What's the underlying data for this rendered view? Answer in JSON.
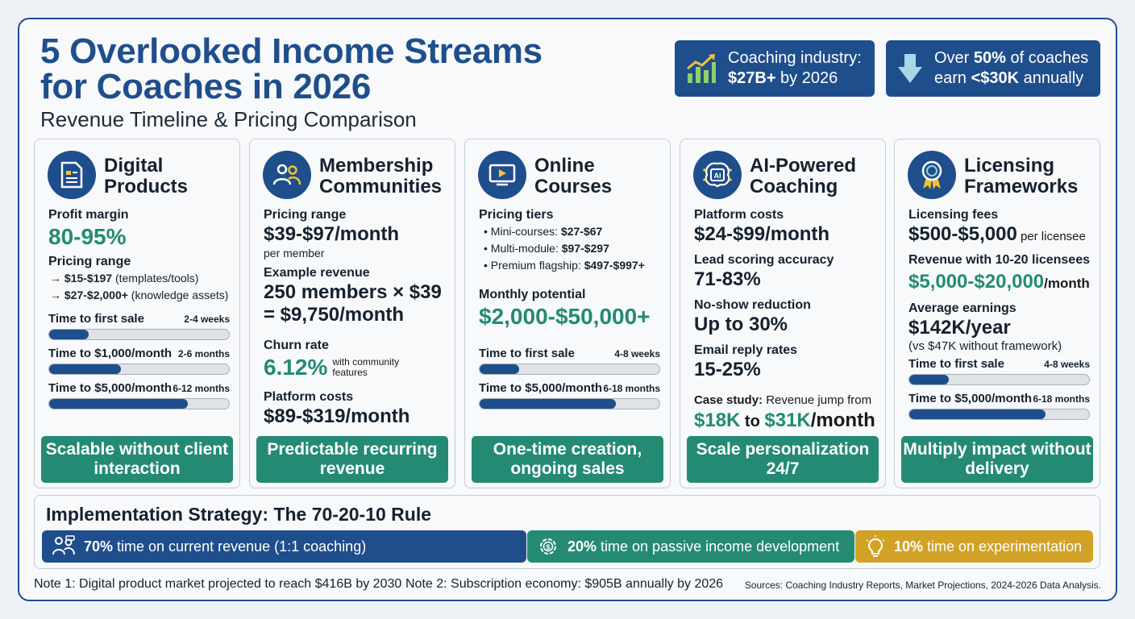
{
  "header": {
    "title_line1": "5 Overlooked Income Streams",
    "title_line2": "for Coaches in 2026",
    "subtitle": "Revenue Timeline & Pricing Comparison"
  },
  "stats": [
    {
      "icon": "bar-chart-up-icon",
      "line1": "Coaching industry:",
      "line2_bold": "$27B+",
      "line2_rest": " by 2026"
    },
    {
      "icon": "arrow-down-icon",
      "line1_pre": "Over ",
      "line1_bold": "50%",
      "line1_post": " of coaches",
      "line2_pre": "earn ",
      "line2_bold": "<$30K",
      "line2_post": " annually"
    }
  ],
  "cards": {
    "digital": {
      "title1": "Digital",
      "title2": "Products",
      "margin_label": "Profit margin",
      "margin_value": "80-95%",
      "pricing_label": "Pricing range",
      "items": [
        {
          "arrow": "→",
          "bold": "$15-$197",
          "rest": " (templates/tools)"
        },
        {
          "arrow": "→",
          "bold": "$27-$2,000+",
          "rest": " (knowledge assets)"
        }
      ],
      "bars": [
        {
          "label": "Time to first sale",
          "range": "2-4 weeks",
          "progress": 0.22
        },
        {
          "label": "Time to $1,000/month",
          "range": "2-6 months",
          "progress": 0.4
        },
        {
          "label": "Time to $5,000/month",
          "range": "6-12 months",
          "progress": 0.77
        }
      ],
      "cta": "Scalable without client interaction"
    },
    "membership": {
      "title1": "Membership",
      "title2": "Communities",
      "pricing_label": "Pricing range",
      "pricing_value": "$39-$97/month",
      "pricing_note": "per member",
      "example_label": "Example revenue",
      "example_line1": "250 members × $39",
      "example_line2": "= $9,750/month",
      "churn_label": "Churn rate",
      "churn_value": "6.12%",
      "churn_note": "with community features",
      "platform_label": "Platform costs",
      "platform_value": "$89-$319/month",
      "cta": "Predictable recurring revenue"
    },
    "courses": {
      "title1": "Online",
      "title2": "Courses",
      "tiers_label": "Pricing tiers",
      "tiers": [
        {
          "name": "Mini-courses: ",
          "price": "$27-$67"
        },
        {
          "name": "Multi-module: ",
          "price": "$97-$297"
        },
        {
          "name": "Premium flagship: ",
          "price": "$497-$997+"
        }
      ],
      "potential_label": "Monthly potential",
      "potential_value": "$2,000-$50,000+",
      "bars": [
        {
          "label": "Time to first sale",
          "range": "4-8 weeks",
          "progress": 0.22
        },
        {
          "label": "Time to $5,000/month",
          "range": "6-18 months",
          "progress": 0.76
        }
      ],
      "cta": "One-time creation, ongoing sales"
    },
    "ai": {
      "title1": "AI-Powered",
      "title2": "Coaching",
      "icon_text": "AI",
      "platform_label": "Platform costs",
      "platform_value": "$24-$99/month",
      "lead_label": "Lead scoring accuracy",
      "lead_value": "71-83%",
      "noshow_label": "No-show reduction",
      "noshow_value": "Up to 30%",
      "email_label": "Email reply rates",
      "email_value": "15-25%",
      "case_label": "Case study:",
      "case_text": " Revenue jump from",
      "case_from": "$18K",
      "case_to_word": " to ",
      "case_to": "$31K",
      "case_unit": "/month",
      "cta": "Scale personalization 24/7"
    },
    "licensing": {
      "title1": "Licensing",
      "title2": "Frameworks",
      "fees_label": "Licensing fees",
      "fees_value": "$500-$5,000",
      "fees_note": " per licensee",
      "rev_label": "Revenue with 10-20 licensees",
      "rev_value": "$5,000-$20,000",
      "rev_unit": "/month",
      "avg_label": "Average earnings",
      "avg_value": "$142K/year",
      "avg_note": "(vs $47K without framework)",
      "bars": [
        {
          "label": "Time to first sale",
          "range": "4-8 weeks",
          "progress": 0.22
        },
        {
          "label": "Time to $5,000/month",
          "range": "6-18 months",
          "progress": 0.76
        }
      ],
      "cta": "Multiply impact without delivery"
    }
  },
  "implementation": {
    "title": "Implementation Strategy: The 70-20-10 Rule",
    "segments": [
      {
        "pct": "70%",
        "text": " time on current revenue (1:1 coaching)",
        "color": "#1f4e8c",
        "icon": "people-icon"
      },
      {
        "pct": "20%",
        "text": " time on passive income development",
        "color": "#248a74",
        "icon": "gear-dollar-icon"
      },
      {
        "pct": "10%",
        "text": " time on experimentation",
        "color": "#d2a227",
        "icon": "lightbulb-icon"
      }
    ]
  },
  "footer": {
    "note1": "Note 1: Digital product market projected to reach $416B by 2030",
    "note2": "Note 2: Subscription economy: $905B annually by 2026",
    "sources": "Sources: Coaching Industry Reports, Market Projections, 2024-2026 Data Analysis."
  }
}
